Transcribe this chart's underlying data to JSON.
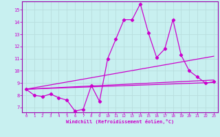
{
  "xlabel": "Windchill (Refroidissement éolien,°C)",
  "background_color": "#c8f0f0",
  "grid_color": "#b8dede",
  "line_color": "#cc00cc",
  "spine_color": "#9900aa",
  "x": [
    0,
    1,
    2,
    3,
    4,
    5,
    6,
    7,
    8,
    9,
    10,
    11,
    12,
    13,
    14,
    15,
    16,
    17,
    18,
    19,
    20,
    21,
    22,
    23
  ],
  "line1": [
    8.5,
    8.0,
    7.9,
    8.1,
    7.8,
    7.6,
    6.7,
    6.85,
    8.8,
    7.5,
    11.0,
    12.6,
    14.2,
    14.2,
    15.5,
    13.1,
    11.1,
    11.8,
    14.2,
    11.3,
    10.0,
    9.5,
    9.0,
    9.1
  ],
  "trend1_x": [
    0,
    23
  ],
  "trend1_y": [
    8.5,
    9.05
  ],
  "trend2_x": [
    0,
    23
  ],
  "trend2_y": [
    8.5,
    9.25
  ],
  "trend3_x": [
    0,
    23
  ],
  "trend3_y": [
    8.5,
    11.2
  ],
  "ylim": [
    6.6,
    15.7
  ],
  "xlim": [
    -0.5,
    23.5
  ],
  "yticks": [
    7,
    8,
    9,
    10,
    11,
    12,
    13,
    14,
    15
  ],
  "xticks": [
    0,
    1,
    2,
    3,
    4,
    5,
    6,
    7,
    8,
    9,
    10,
    11,
    12,
    13,
    14,
    15,
    16,
    17,
    18,
    19,
    20,
    21,
    22,
    23
  ]
}
